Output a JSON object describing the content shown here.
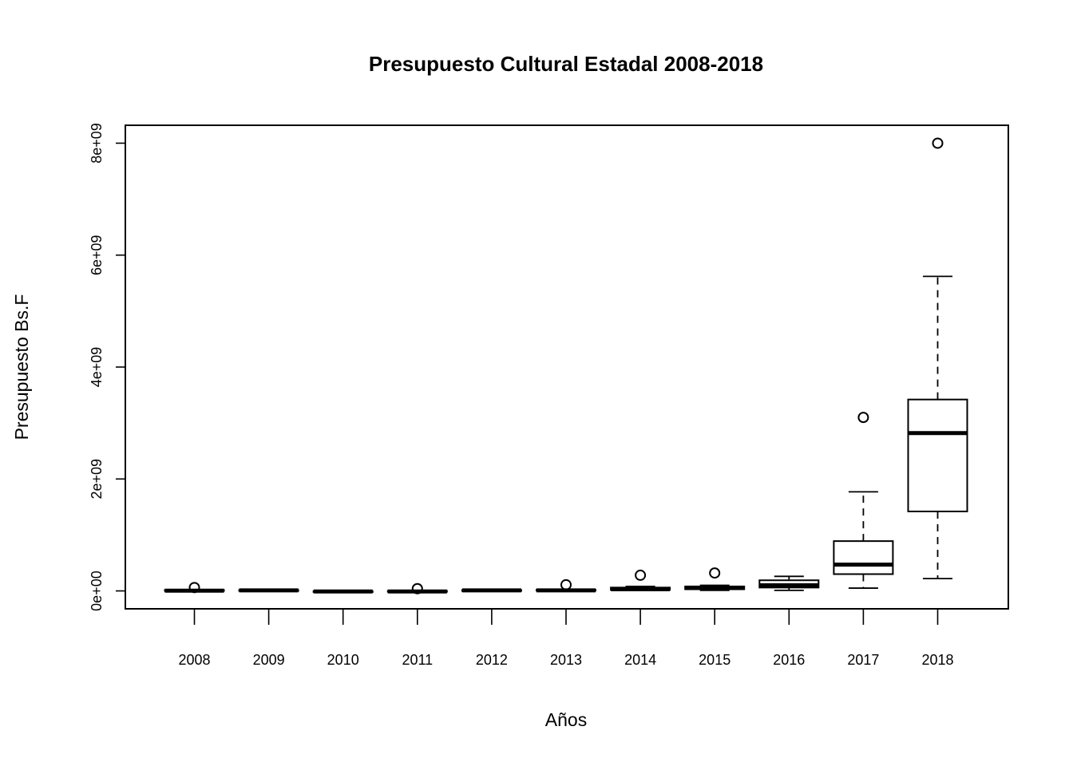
{
  "chart_data": {
    "type": "boxplot",
    "title": "Presupuesto Cultural Estadal 2008-2018",
    "xlabel": "Años",
    "ylabel": "Presupuesto Bs.F",
    "ylim": [
      -320000000,
      8320000000
    ],
    "yticks": [
      0,
      2000000000,
      4000000000,
      6000000000,
      8000000000
    ],
    "ytick_labels": [
      "0e+00",
      "2e+09",
      "4e+09",
      "6e+09",
      "8e+09"
    ],
    "grid": false,
    "categories": [
      "2008",
      "2009",
      "2010",
      "2011",
      "2012",
      "2013",
      "2014",
      "2015",
      "2016",
      "2017",
      "2018"
    ],
    "boxes": [
      {
        "whisker_low": 0,
        "q1": 2000000,
        "median": 5000000,
        "q3": 15000000,
        "whisker_high": 20000000,
        "outliers": [
          60000000
        ]
      },
      {
        "whisker_low": 0,
        "q1": 5000000,
        "median": 10000000,
        "q3": 15000000,
        "whisker_high": 20000000,
        "outliers": []
      },
      {
        "whisker_low": -20000000,
        "q1": -15000000,
        "median": -10000000,
        "q3": -5000000,
        "whisker_high": 0,
        "outliers": []
      },
      {
        "whisker_low": -20000000,
        "q1": -15000000,
        "median": -10000000,
        "q3": 0,
        "whisker_high": 5000000,
        "outliers": [
          40000000
        ]
      },
      {
        "whisker_low": 0,
        "q1": 5000000,
        "median": 10000000,
        "q3": 15000000,
        "whisker_high": 20000000,
        "outliers": []
      },
      {
        "whisker_low": 0,
        "q1": 5000000,
        "median": 10000000,
        "q3": 20000000,
        "whisker_high": 30000000,
        "outliers": [
          110000000
        ]
      },
      {
        "whisker_low": 10000000,
        "q1": 20000000,
        "median": 30000000,
        "q3": 60000000,
        "whisker_high": 80000000,
        "outliers": [
          280000000
        ]
      },
      {
        "whisker_low": 10000000,
        "q1": 30000000,
        "median": 50000000,
        "q3": 80000000,
        "whisker_high": 100000000,
        "outliers": [
          320000000
        ]
      },
      {
        "whisker_low": 10000000,
        "q1": 60000000,
        "median": 100000000,
        "q3": 190000000,
        "whisker_high": 260000000,
        "outliers": []
      },
      {
        "whisker_low": 50000000,
        "q1": 300000000,
        "median": 470000000,
        "q3": 890000000,
        "whisker_high": 1770000000,
        "outliers": [
          3100000000
        ]
      },
      {
        "whisker_low": 220000000,
        "q1": 1420000000,
        "median": 2820000000,
        "q3": 3420000000,
        "whisker_high": 5620000000,
        "outliers": [
          8000000000
        ]
      }
    ]
  }
}
